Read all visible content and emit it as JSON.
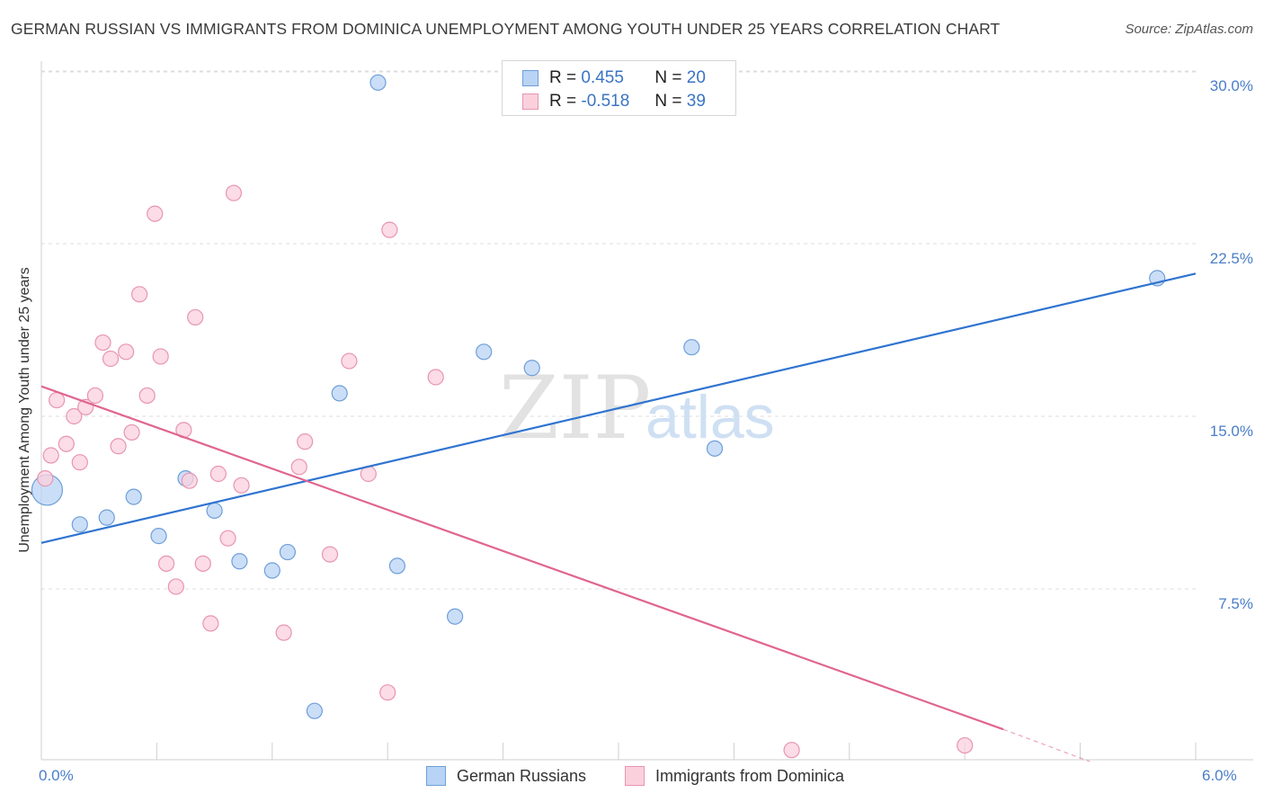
{
  "chart_data": {
    "type": "scatter",
    "title": "GERMAN RUSSIAN VS IMMIGRANTS FROM DOMINICA UNEMPLOYMENT AMONG YOUTH UNDER 25 YEARS CORRELATION CHART",
    "source": "Source: ZipAtlas.com",
    "xlabel": "",
    "ylabel": "Unemployment Among Youth under 25 years",
    "xlim": [
      0,
      6
    ],
    "ylim": [
      0,
      31
    ],
    "x_tick_labels": [
      {
        "value": 0,
        "label": "0.0%"
      },
      {
        "value": 6,
        "label": "6.0%"
      }
    ],
    "y_ticks": [
      {
        "value": 7.5,
        "label": "7.5%"
      },
      {
        "value": 15,
        "label": "15.0%"
      },
      {
        "value": 22.5,
        "label": "22.5%"
      },
      {
        "value": 30,
        "label": "30.0%"
      }
    ],
    "watermark": {
      "zip": "ZIP",
      "atlas": "atlas"
    },
    "legend": [
      {
        "r_label": "R =",
        "r_value": "0.455",
        "n_label": "N =",
        "n_value": "20"
      },
      {
        "r_label": "R =",
        "r_value": "-0.518",
        "n_label": "N =",
        "n_value": "39"
      }
    ],
    "series": [
      {
        "name": "German Russians",
        "color": "#6e9fd8",
        "fill": "#b9d3f5",
        "line_color": "#2f74d0",
        "trend": {
          "x0": 0,
          "y0": 9.5,
          "x1": 6,
          "y1": 21.2
        },
        "points": [
          {
            "x": 0.03,
            "y": 11.8,
            "size": "large"
          },
          {
            "x": 0.2,
            "y": 10.3
          },
          {
            "x": 0.34,
            "y": 10.6
          },
          {
            "x": 0.48,
            "y": 11.5
          },
          {
            "x": 0.61,
            "y": 9.8
          },
          {
            "x": 0.75,
            "y": 12.3
          },
          {
            "x": 0.9,
            "y": 10.9
          },
          {
            "x": 1.03,
            "y": 8.7
          },
          {
            "x": 1.2,
            "y": 8.3
          },
          {
            "x": 1.28,
            "y": 9.1
          },
          {
            "x": 1.42,
            "y": 2.2
          },
          {
            "x": 1.55,
            "y": 16.0
          },
          {
            "x": 1.75,
            "y": 29.5
          },
          {
            "x": 1.85,
            "y": 8.5
          },
          {
            "x": 2.15,
            "y": 6.3
          },
          {
            "x": 2.3,
            "y": 17.8
          },
          {
            "x": 2.55,
            "y": 17.1
          },
          {
            "x": 3.38,
            "y": 18.0
          },
          {
            "x": 3.5,
            "y": 13.6
          },
          {
            "x": 5.8,
            "y": 21.0
          }
        ]
      },
      {
        "name": "Immigrants from Dominica",
        "color": "#e895b0",
        "fill": "#fbd0dd",
        "line_color": "#e06591",
        "trend": {
          "x0": 0,
          "y0": 16.3,
          "x1": 5.0,
          "y1": 1.4
        },
        "trend_dashed": {
          "x0": 5.0,
          "y0": 1.4,
          "x1": 5.45,
          "y1": 0.0
        },
        "points": [
          {
            "x": 0.02,
            "y": 12.3
          },
          {
            "x": 0.05,
            "y": 13.3
          },
          {
            "x": 0.08,
            "y": 15.7
          },
          {
            "x": 0.13,
            "y": 13.8
          },
          {
            "x": 0.17,
            "y": 15.0
          },
          {
            "x": 0.2,
            "y": 13.0
          },
          {
            "x": 0.23,
            "y": 15.4
          },
          {
            "x": 0.28,
            "y": 15.9
          },
          {
            "x": 0.32,
            "y": 18.2
          },
          {
            "x": 0.36,
            "y": 17.5
          },
          {
            "x": 0.4,
            "y": 13.7
          },
          {
            "x": 0.44,
            "y": 17.8
          },
          {
            "x": 0.47,
            "y": 14.3
          },
          {
            "x": 0.51,
            "y": 20.3
          },
          {
            "x": 0.55,
            "y": 15.9
          },
          {
            "x": 0.59,
            "y": 23.8
          },
          {
            "x": 0.62,
            "y": 17.6
          },
          {
            "x": 0.65,
            "y": 8.6
          },
          {
            "x": 0.7,
            "y": 7.6
          },
          {
            "x": 0.74,
            "y": 14.4
          },
          {
            "x": 0.77,
            "y": 12.2
          },
          {
            "x": 0.8,
            "y": 19.3
          },
          {
            "x": 0.84,
            "y": 8.6
          },
          {
            "x": 0.88,
            "y": 6.0
          },
          {
            "x": 0.92,
            "y": 12.5
          },
          {
            "x": 0.97,
            "y": 9.7
          },
          {
            "x": 1.0,
            "y": 24.7
          },
          {
            "x": 1.04,
            "y": 12.0
          },
          {
            "x": 1.26,
            "y": 5.6
          },
          {
            "x": 1.34,
            "y": 12.8
          },
          {
            "x": 1.37,
            "y": 13.9
          },
          {
            "x": 1.5,
            "y": 9.0
          },
          {
            "x": 1.6,
            "y": 17.4
          },
          {
            "x": 1.7,
            "y": 12.5
          },
          {
            "x": 1.8,
            "y": 3.0
          },
          {
            "x": 1.81,
            "y": 23.1
          },
          {
            "x": 2.05,
            "y": 16.7
          },
          {
            "x": 3.9,
            "y": 0.5
          },
          {
            "x": 4.8,
            "y": 0.7
          }
        ]
      }
    ]
  }
}
